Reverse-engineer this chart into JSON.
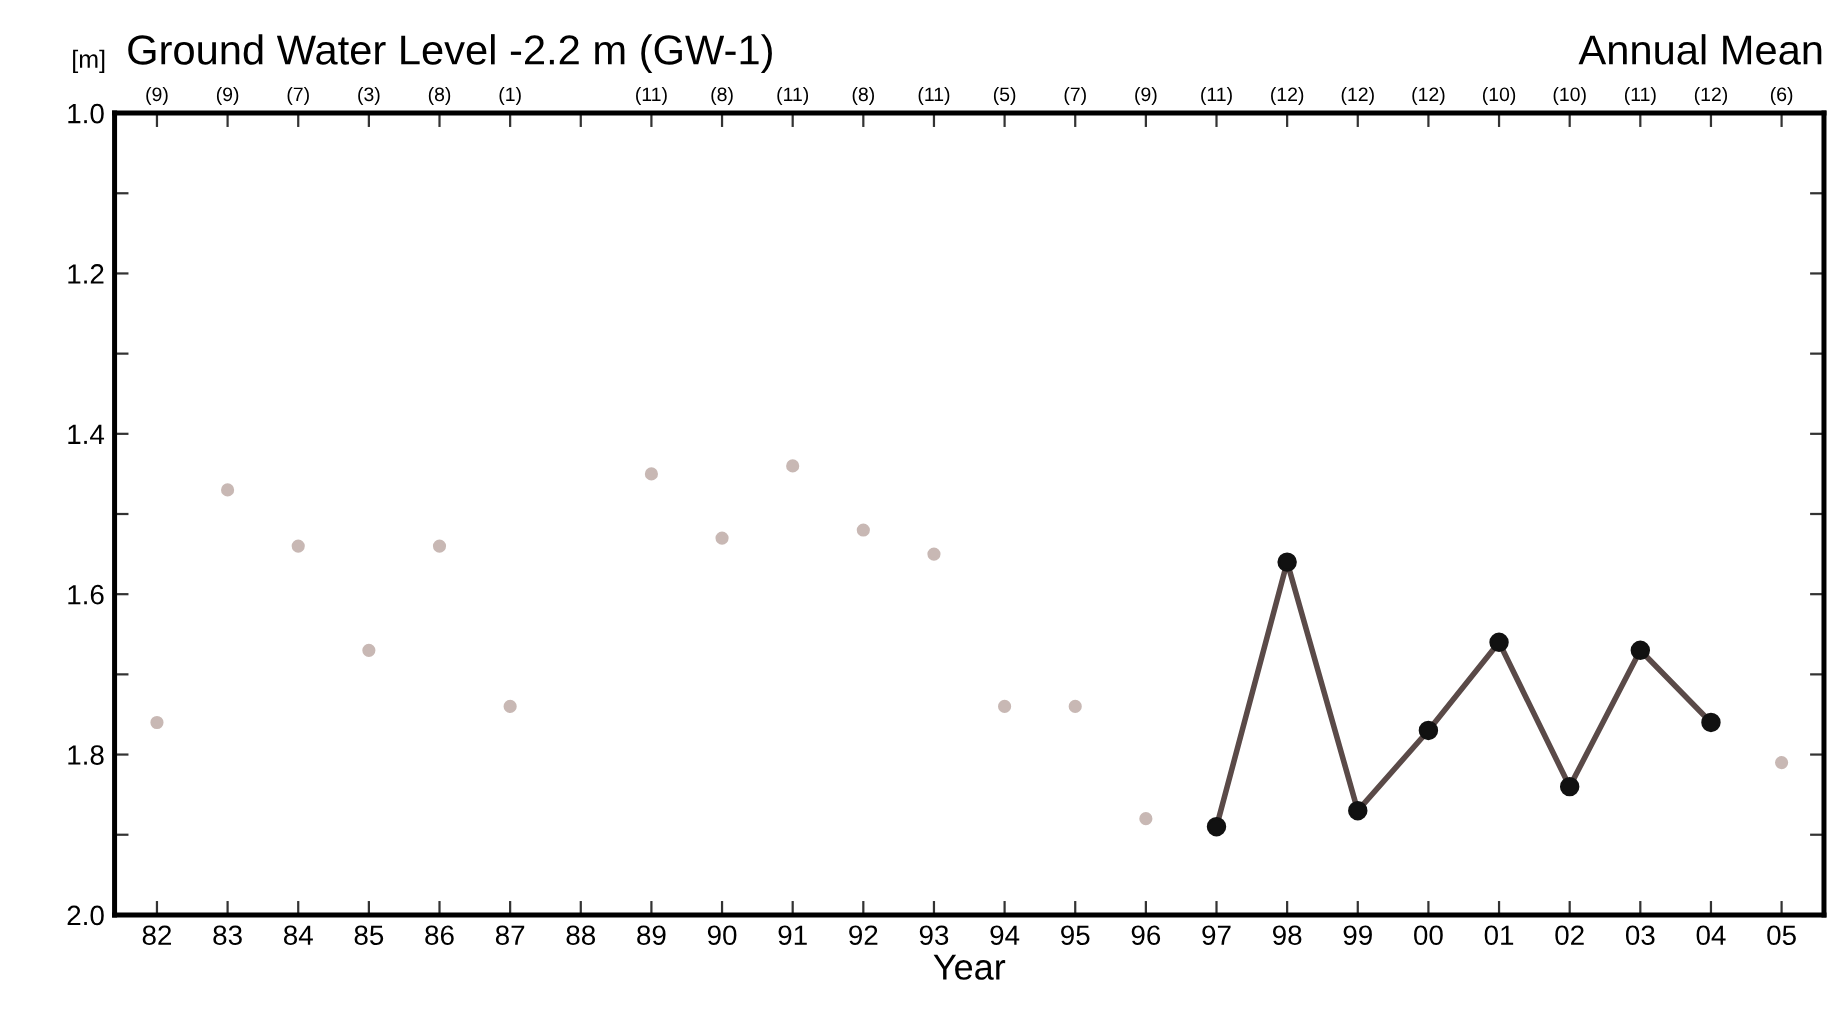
{
  "chart_data": {
    "type": "line",
    "title": "Ground Water Level -2.2 m (GW-1)",
    "subtitle": "Annual Mean",
    "ylabel": "[m]",
    "xlabel": "Year",
    "categories": [
      "82",
      "83",
      "84",
      "85",
      "86",
      "87",
      "88",
      "89",
      "90",
      "91",
      "92",
      "93",
      "94",
      "95",
      "96",
      "97",
      "98",
      "99",
      "00",
      "01",
      "02",
      "03",
      "04",
      "05"
    ],
    "series": [
      {
        "type": "scatter",
        "color": "#c8b8b4",
        "values": [
          1.76,
          1.47,
          1.54,
          1.67,
          1.54,
          1.74,
          null,
          1.45,
          1.53,
          1.44,
          1.52,
          1.55,
          1.74,
          1.74,
          1.88,
          null,
          null,
          null,
          null,
          null,
          null,
          null,
          null,
          1.81
        ]
      },
      {
        "color": "#5a4a48",
        "values": [
          null,
          null,
          null,
          null,
          null,
          null,
          null,
          null,
          null,
          null,
          null,
          null,
          null,
          null,
          null,
          1.89,
          1.56,
          1.87,
          1.77,
          1.66,
          1.84,
          1.67,
          1.76,
          null
        ]
      }
    ],
    "marker": "circle",
    "line_style": "solid",
    "grid": false,
    "legend": false,
    "ylim": [
      2.0,
      1.0
    ],
    "yticks": [
      {
        "value": 1.0,
        "label": "1.0"
      },
      {
        "value": 1.1,
        "label": null
      },
      {
        "value": 1.2,
        "label": "1.2"
      },
      {
        "value": 1.3,
        "label": null
      },
      {
        "value": 1.4,
        "label": "1.4"
      },
      {
        "value": 1.5,
        "label": null
      },
      {
        "value": 1.6,
        "label": "1.6"
      },
      {
        "value": 1.7,
        "label": null
      },
      {
        "value": 1.8,
        "label": "1.8"
      },
      {
        "value": 1.9,
        "label": null
      },
      {
        "value": 2.0,
        "label": "2.0"
      }
    ],
    "annotations": [
      "(9)",
      "(9)",
      "(7)",
      "(3)",
      "(8)",
      "(1)",
      null,
      "(11)",
      "(8)",
      "(11)",
      "(8)",
      "(11)",
      "(5)",
      "(7)",
      "(9)",
      "(11)",
      "(12)",
      "(12)",
      "(12)",
      "(10)",
      "(10)",
      "(11)",
      "(12)",
      "(6)"
    ]
  }
}
